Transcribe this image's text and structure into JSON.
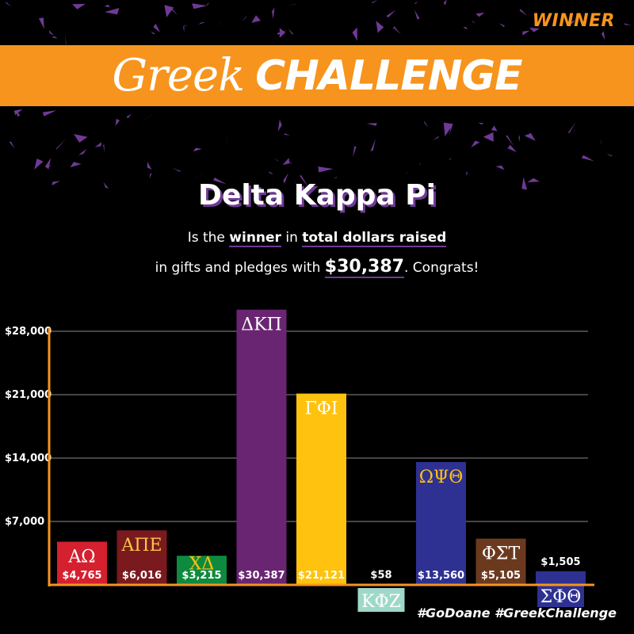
{
  "header": {
    "winner_tag": "WINNER",
    "title_script": "Greek",
    "title_caps": "CHALLENGE"
  },
  "announcement": {
    "headline": "Delta Kappa Pi",
    "line1_pre": "Is the ",
    "line1_winner": "winner",
    "line1_mid": " in ",
    "line1_total": "total dollars raised",
    "line2_pre": "in gifts and pledges with ",
    "line2_amount": "$30,387",
    "line2_post": ". Congrats!"
  },
  "footer": {
    "hashtags": "#GoDoane #GreekChallenge"
  },
  "colors": {
    "accent": "#f7941d",
    "purple": "#6f3a96"
  },
  "chart_data": {
    "type": "bar",
    "ylim": [
      0,
      28000
    ],
    "yticks": [
      7000,
      14000,
      21000,
      28000
    ],
    "ytick_labels": [
      "$7,000",
      "$14,000",
      "$21,000",
      "$28,000"
    ],
    "grid": true,
    "categories": [
      "ΑΩ",
      "ΑΠΕ",
      "ΧΔ",
      "ΔΚΠ",
      "ΓΦΙ",
      "ΚΦΖ",
      "ΩΨΘ",
      "ΦΣΤ",
      "ΣΦΘ"
    ],
    "values": [
      4765,
      6016,
      3215,
      30387,
      21121,
      58,
      13560,
      5105,
      1505
    ],
    "value_labels": [
      "$4,765",
      "$6,016",
      "$3,215",
      "$30,387",
      "$21,121",
      "$58",
      "$13,560",
      "$5,105",
      "$1,505"
    ],
    "bar_colors": [
      "#d4202f",
      "#7a1a1e",
      "#0e8a3e",
      "#6a2572",
      "#ffc20e",
      "#9fd8c8",
      "#2e3192",
      "#6b3a1e",
      "#2e3192"
    ],
    "letter_colors": [
      "#ffffff",
      "#f7c845",
      "#ffc20e",
      "#ffffff",
      "#ffffff",
      "#ffffff",
      "#ffc20e",
      "#ffffff",
      "#ffffff"
    ]
  }
}
